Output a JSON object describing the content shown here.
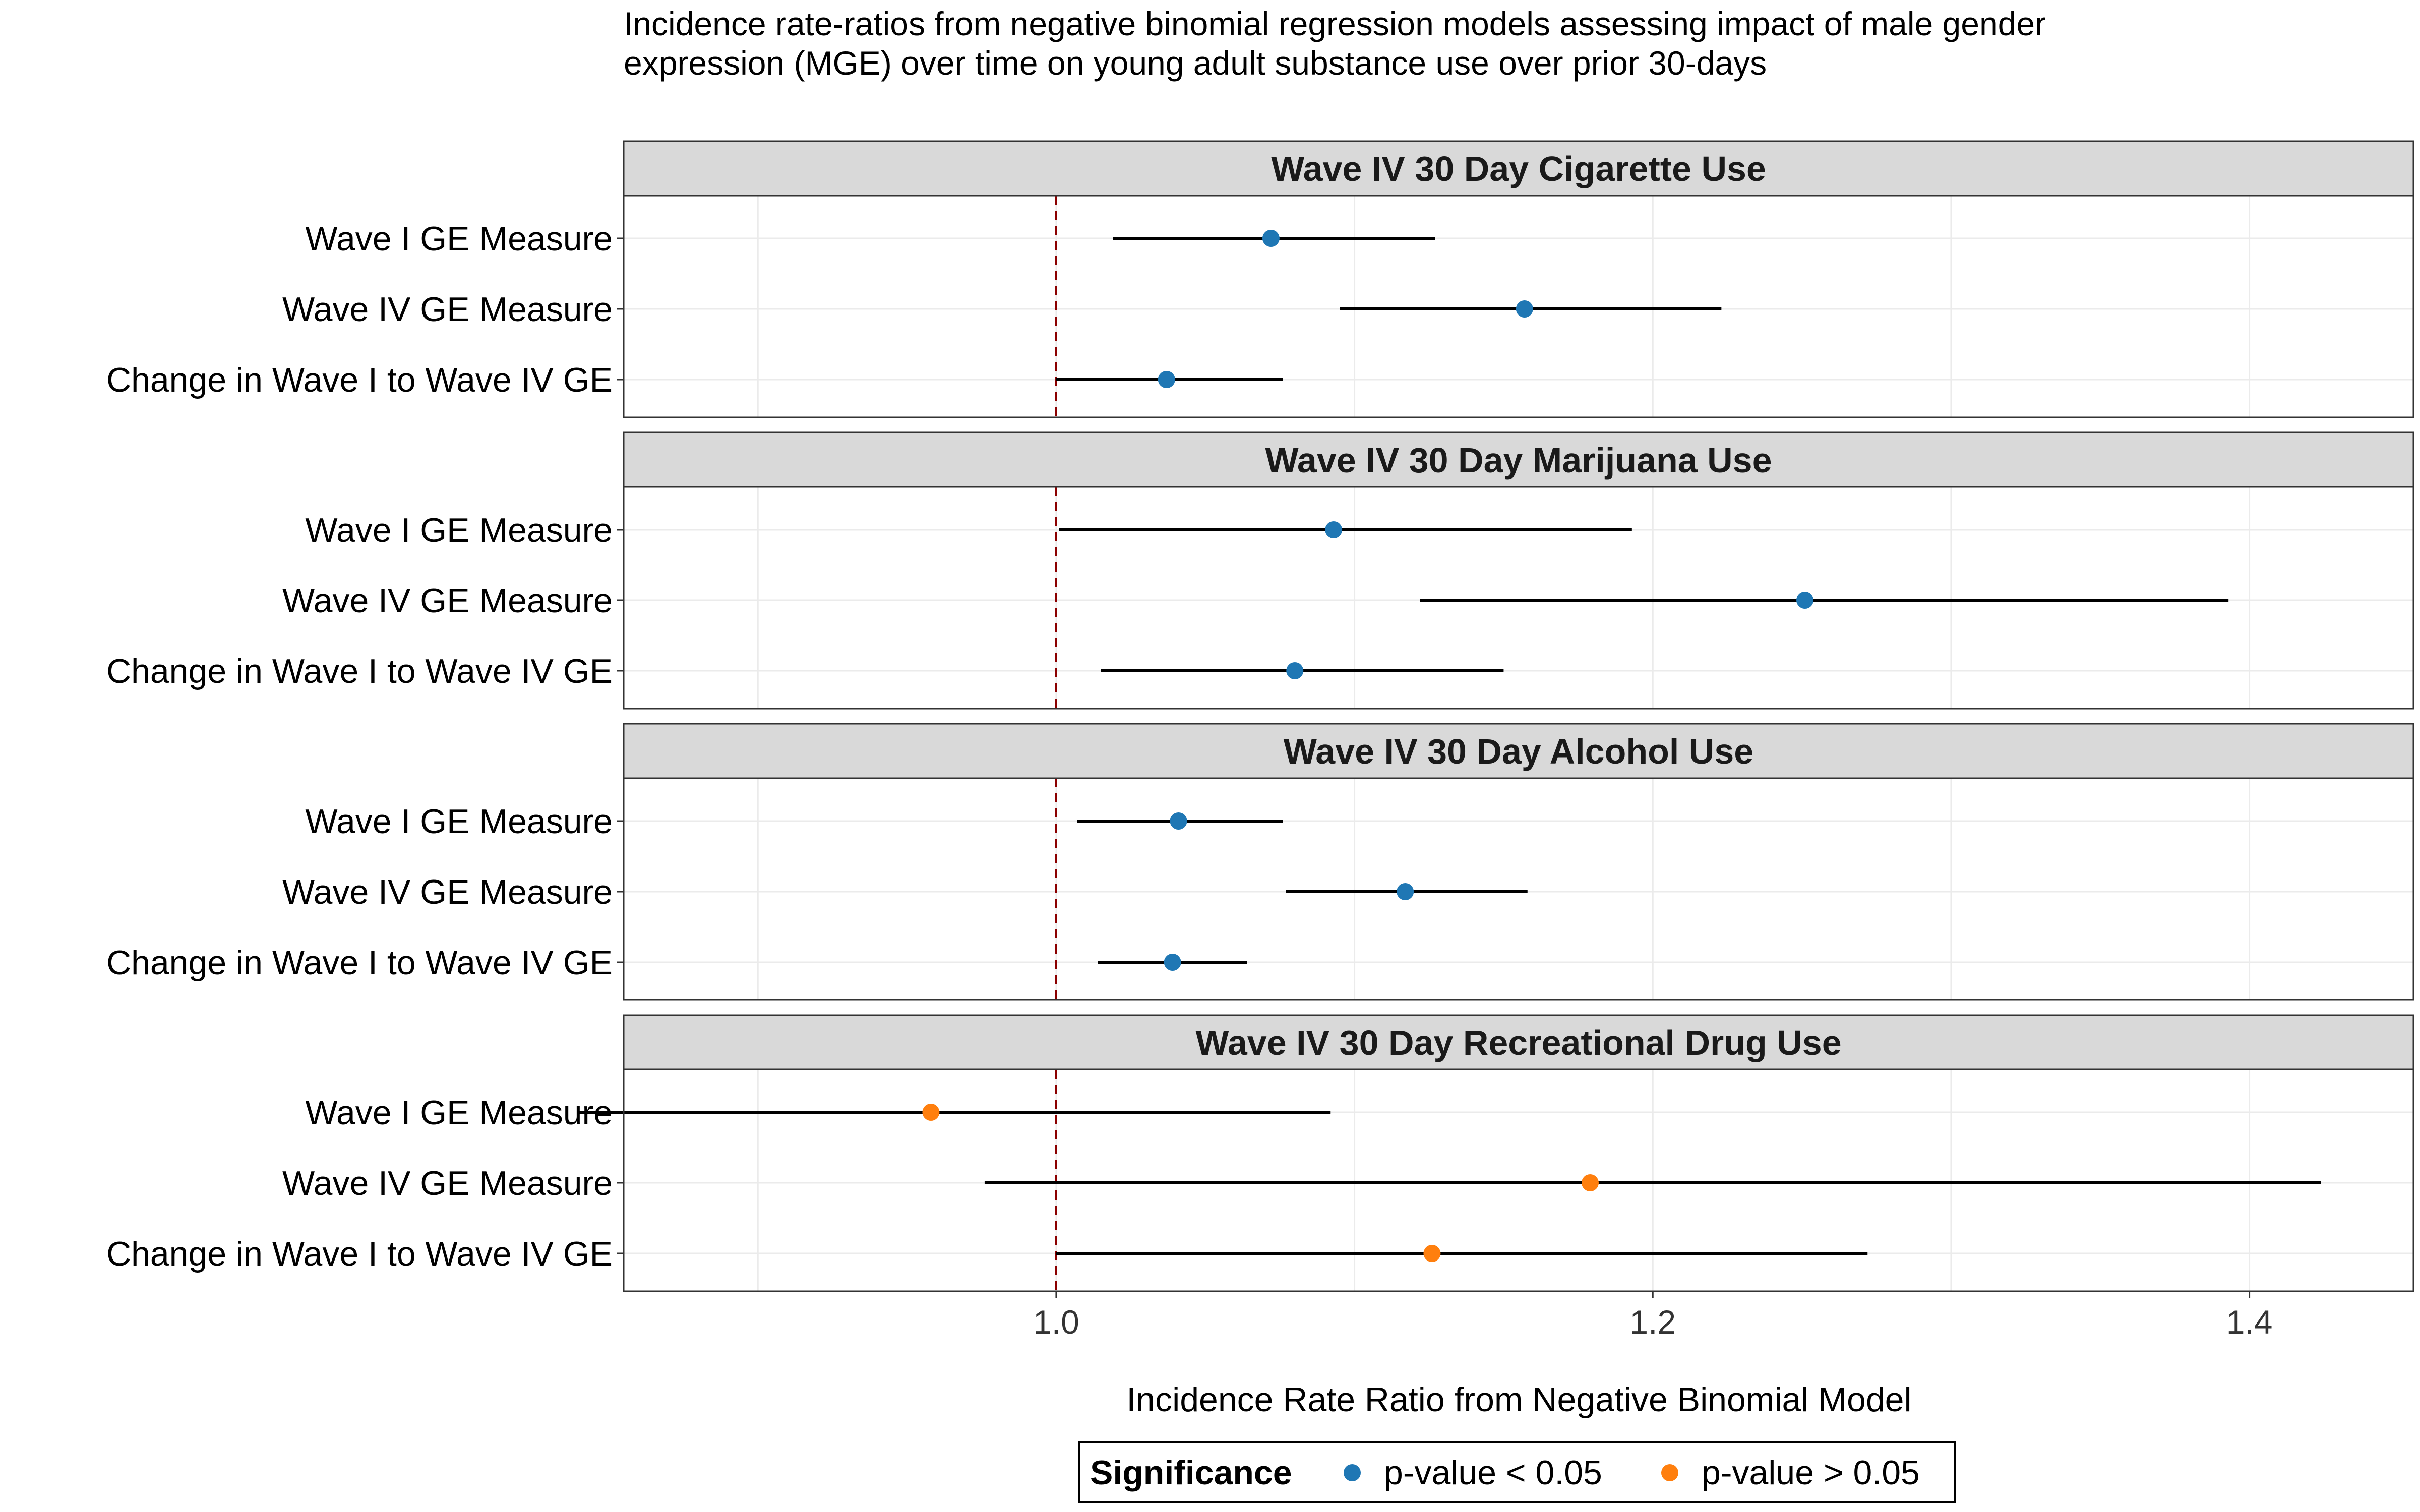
{
  "colors": {
    "significant": "#1f77b4",
    "not_significant": "#ff7f0e",
    "reference_line": "#8b0000"
  },
  "chart_data": {
    "type": "scatter",
    "subtype": "forest-plot-faceted",
    "title": "Incidence rate-ratios from negative binomial regression models assessing impact of male gender expression (MGE) over time on young adult substance use over prior 30-days",
    "title_lines": [
      "Incidence rate-ratios from negative binomial regression models assessing impact of male gender",
      "expression (MGE) over time on young adult substance use over prior 30-days"
    ],
    "xlabel": "Incidence Rate Ratio from Negative Binomial Model",
    "ylabel": "",
    "xlim": [
      0.855,
      1.455
    ],
    "x_ticks": [
      1.0,
      1.2,
      1.4
    ],
    "x_tick_labels": [
      "1.0",
      "1.2",
      "1.4"
    ],
    "reference_x": 1.0,
    "grid": true,
    "categories": [
      "Wave I GE Measure",
      "Wave IV GE Measure",
      "Change in Wave I to Wave IV GE"
    ],
    "legend": {
      "title": "Significance",
      "position": "bottom",
      "entries": [
        {
          "label": "p-value < 0.05",
          "color": "#1f77b4"
        },
        {
          "label": "p-value > 0.05",
          "color": "#ff7f0e"
        }
      ]
    },
    "panels": [
      {
        "title": "Wave IV 30 Day Cigarette Use",
        "points": [
          {
            "label": "Wave I GE Measure",
            "estimate": 1.072,
            "lower": 1.019,
            "upper": 1.127,
            "significant": true
          },
          {
            "label": "Wave IV GE Measure",
            "estimate": 1.157,
            "lower": 1.095,
            "upper": 1.223,
            "significant": true
          },
          {
            "label": "Change in Wave I to Wave IV GE",
            "estimate": 1.037,
            "lower": 1.0,
            "upper": 1.076,
            "significant": true
          }
        ]
      },
      {
        "title": "Wave IV 30 Day Marijuana Use",
        "points": [
          {
            "label": "Wave I GE Measure",
            "estimate": 1.093,
            "lower": 1.001,
            "upper": 1.193,
            "significant": true
          },
          {
            "label": "Wave IV GE Measure",
            "estimate": 1.251,
            "lower": 1.122,
            "upper": 1.393,
            "significant": true
          },
          {
            "label": "Change in Wave I to Wave IV GE",
            "estimate": 1.08,
            "lower": 1.015,
            "upper": 1.15,
            "significant": true
          }
        ]
      },
      {
        "title": "Wave IV 30 Day Alcohol Use",
        "points": [
          {
            "label": "Wave I GE Measure",
            "estimate": 1.041,
            "lower": 1.007,
            "upper": 1.076,
            "significant": true
          },
          {
            "label": "Wave IV GE Measure",
            "estimate": 1.117,
            "lower": 1.077,
            "upper": 1.158,
            "significant": true
          },
          {
            "label": "Change in Wave I to Wave IV GE",
            "estimate": 1.039,
            "lower": 1.014,
            "upper": 1.064,
            "significant": true
          }
        ]
      },
      {
        "title": "Wave IV 30 Day Recreational Drug Use",
        "points": [
          {
            "label": "Wave I GE Measure",
            "estimate": 0.958,
            "lower": 0.84,
            "upper": 1.092,
            "significant": false
          },
          {
            "label": "Wave IV GE Measure",
            "estimate": 1.179,
            "lower": 0.976,
            "upper": 1.424,
            "significant": false
          },
          {
            "label": "Change in Wave I to Wave IV GE",
            "estimate": 1.126,
            "lower": 1.0,
            "upper": 1.272,
            "significant": false
          }
        ]
      }
    ]
  }
}
